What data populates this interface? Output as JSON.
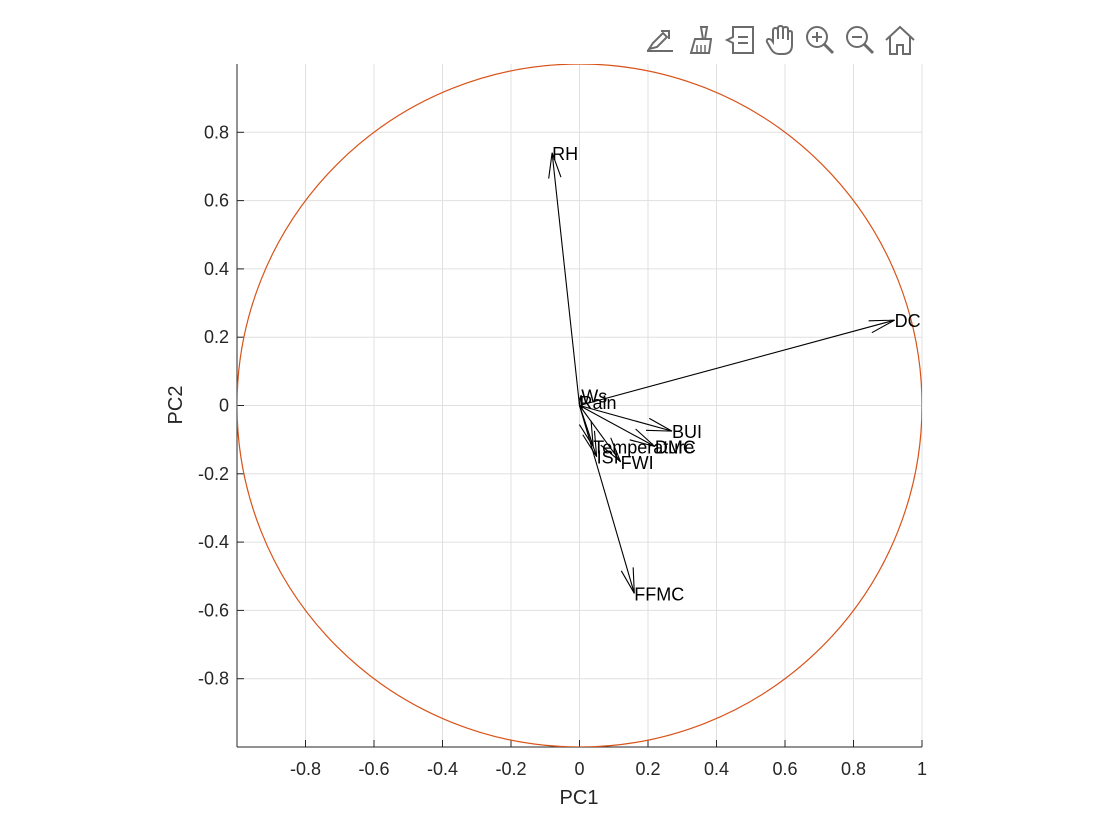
{
  "toolbar": {
    "buttons": [
      {
        "name": "export-icon"
      },
      {
        "name": "brush-icon"
      },
      {
        "name": "data-tips-icon"
      },
      {
        "name": "pan-icon"
      },
      {
        "name": "zoom-in-icon"
      },
      {
        "name": "zoom-out-icon"
      },
      {
        "name": "home-icon"
      }
    ]
  },
  "colors": {
    "circle": "#D95319",
    "vector": "#000000",
    "grid": "#E0E0E0",
    "axis": "#262626"
  },
  "chart_data": {
    "type": "biplot",
    "xlabel": "PC1",
    "ylabel": "PC2",
    "xlim": [
      -1,
      1
    ],
    "ylim": [
      -1,
      1
    ],
    "xticks": [
      -0.8,
      -0.6,
      -0.4,
      -0.2,
      0,
      0.2,
      0.4,
      0.6,
      0.8,
      1
    ],
    "xtick_labels": [
      "-0.8",
      "-0.6",
      "-0.4",
      "-0.2",
      "0",
      "0.2",
      "0.4",
      "0.6",
      "0.8",
      "1"
    ],
    "yticks": [
      0.8,
      0.6,
      0.4,
      0.2,
      0,
      -0.2,
      -0.4,
      -0.6,
      -0.8
    ],
    "ytick_labels": [
      "0.8",
      "0.6",
      "0.4",
      "0.2",
      "0",
      "-0.2",
      "-0.4",
      "-0.6",
      "-0.8"
    ],
    "grid": true,
    "unit_circle": true,
    "vectors": [
      {
        "label": "RH",
        "x": -0.08,
        "y": 0.74
      },
      {
        "label": "DC",
        "x": 0.92,
        "y": 0.25
      },
      {
        "label": "Ws",
        "x": 0.005,
        "y": 0.03
      },
      {
        "label": "Rain",
        "x": 0.0,
        "y": 0.01
      },
      {
        "label": "BUI",
        "x": 0.27,
        "y": -0.075
      },
      {
        "label": "DMC",
        "x": 0.22,
        "y": -0.12
      },
      {
        "label": "Temperature",
        "x": 0.04,
        "y": -0.12
      },
      {
        "label": "ISI",
        "x": 0.05,
        "y": -0.15
      },
      {
        "label": "FWI",
        "x": 0.12,
        "y": -0.165
      },
      {
        "label": "FFMC",
        "x": 0.16,
        "y": -0.55
      }
    ]
  }
}
